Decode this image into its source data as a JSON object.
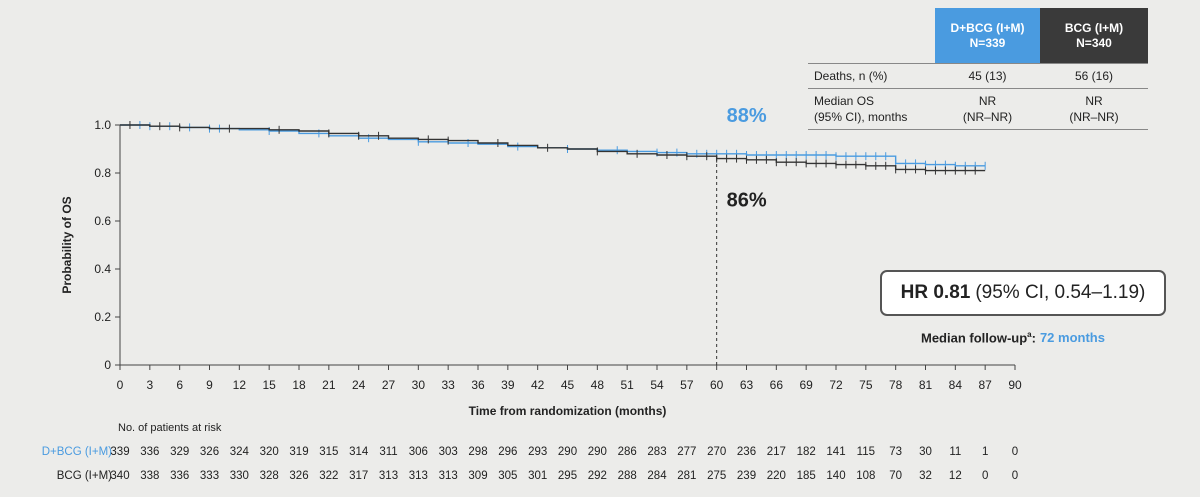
{
  "chart_data": {
    "type": "line",
    "xlabel": "Time from randomization (months)",
    "ylabel": "Probability of OS",
    "xlim": [
      0,
      90
    ],
    "ylim": [
      0,
      1.0
    ],
    "x_ticks": [
      0,
      3,
      6,
      9,
      12,
      15,
      18,
      21,
      24,
      27,
      30,
      33,
      36,
      39,
      42,
      45,
      48,
      51,
      54,
      57,
      60,
      63,
      66,
      69,
      72,
      75,
      78,
      81,
      84,
      87,
      90
    ],
    "y_ticks": [
      {
        "value": 0,
        "label": "0"
      },
      {
        "value": 0.2,
        "label": "0.2"
      },
      {
        "value": 0.4,
        "label": "0.4"
      },
      {
        "value": 0.6,
        "label": "0.6"
      },
      {
        "value": 0.8,
        "label": "0.8"
      },
      {
        "value": 1.0,
        "label": "1.0"
      }
    ],
    "reference_line_x": 60,
    "series": [
      {
        "name": "D+BCG (I+M)",
        "color": "#4a9be0",
        "x": [
          0,
          3,
          6,
          9,
          12,
          15,
          18,
          21,
          24,
          27,
          30,
          33,
          36,
          39,
          42,
          45,
          48,
          51,
          54,
          57,
          60,
          63,
          66,
          69,
          72,
          75,
          78,
          81,
          84,
          87
        ],
        "y": [
          1.0,
          0.995,
          0.99,
          0.985,
          0.98,
          0.975,
          0.965,
          0.955,
          0.945,
          0.94,
          0.93,
          0.925,
          0.92,
          0.91,
          0.905,
          0.9,
          0.895,
          0.89,
          0.885,
          0.88,
          0.88,
          0.875,
          0.875,
          0.875,
          0.87,
          0.87,
          0.84,
          0.835,
          0.83,
          0.83
        ],
        "censor_x": [
          2,
          3,
          5,
          7,
          9,
          10,
          15,
          20,
          25,
          30,
          35,
          40,
          45,
          50,
          54,
          56,
          58,
          59,
          60,
          61,
          62,
          63,
          64,
          65,
          66,
          67,
          68,
          69,
          70,
          71,
          72,
          73,
          74,
          75,
          76,
          77,
          78,
          79,
          80,
          81,
          82,
          83,
          84,
          85,
          86,
          87
        ]
      },
      {
        "name": "BCG (I+M)",
        "color": "#333333",
        "x": [
          0,
          3,
          6,
          9,
          12,
          15,
          18,
          21,
          24,
          27,
          30,
          33,
          36,
          39,
          42,
          45,
          48,
          51,
          54,
          57,
          60,
          63,
          66,
          69,
          72,
          75,
          78,
          81,
          84,
          87
        ],
        "y": [
          1.0,
          0.995,
          0.99,
          0.985,
          0.985,
          0.98,
          0.975,
          0.965,
          0.955,
          0.945,
          0.94,
          0.935,
          0.925,
          0.915,
          0.905,
          0.9,
          0.89,
          0.88,
          0.875,
          0.87,
          0.86,
          0.855,
          0.845,
          0.84,
          0.835,
          0.83,
          0.815,
          0.81,
          0.81,
          0.81
        ],
        "censor_x": [
          1,
          4,
          6,
          11,
          16,
          21,
          24,
          26,
          31,
          33,
          38,
          43,
          48,
          52,
          55,
          57,
          59,
          60,
          61,
          62,
          63,
          64,
          65,
          66,
          67,
          68,
          69,
          70,
          71,
          72,
          73,
          74,
          75,
          76,
          77,
          78,
          79,
          80,
          81,
          82,
          83,
          84,
          85,
          86
        ]
      }
    ],
    "annotations": [
      {
        "text": "88%",
        "x": 60,
        "y": 0.88,
        "color": "#4a9be0"
      },
      {
        "text": "86%",
        "x": 60,
        "y": 0.86,
        "color": "#222222"
      }
    ]
  },
  "summary_table": {
    "col_a": {
      "name": "D+BCG (I+M)",
      "n": "N=339"
    },
    "col_b": {
      "name": "BCG (I+M)",
      "n": "N=340"
    },
    "rows": [
      {
        "label1": "Deaths, n (%)",
        "label2": "",
        "a1": "45 (13)",
        "a2": "",
        "b1": "56 (16)",
        "b2": ""
      },
      {
        "label1": "Median OS",
        "label2": "(95% CI), months",
        "a1": "NR",
        "a2": "(NR–NR)",
        "b1": "NR",
        "b2": "(NR–NR)"
      }
    ]
  },
  "hr": {
    "label": "HR 0.81",
    "ci": "(95% CI, 0.54–1.19)"
  },
  "followup": {
    "label": "Median follow-up",
    "sup": "a",
    "colon": ":",
    "value": "72 months"
  },
  "risk_table": {
    "title": "No. of patients at risk",
    "rows": [
      {
        "label": "D+BCG (I+M)",
        "color": "#4a9be0",
        "values": [
          "339",
          "336",
          "329",
          "326",
          "324",
          "320",
          "319",
          "315",
          "314",
          "311",
          "306",
          "303",
          "298",
          "296",
          "293",
          "290",
          "290",
          "286",
          "283",
          "277",
          "270",
          "236",
          "217",
          "182",
          "141",
          "115",
          "73",
          "30",
          "11",
          "1",
          "0"
        ]
      },
      {
        "label": "BCG (I+M)",
        "color": "#222222",
        "values": [
          "340",
          "338",
          "336",
          "333",
          "330",
          "328",
          "326",
          "322",
          "317",
          "313",
          "313",
          "313",
          "309",
          "305",
          "301",
          "295",
          "292",
          "288",
          "284",
          "281",
          "275",
          "239",
          "220",
          "185",
          "140",
          "108",
          "70",
          "32",
          "12",
          "0",
          "0"
        ]
      }
    ]
  }
}
